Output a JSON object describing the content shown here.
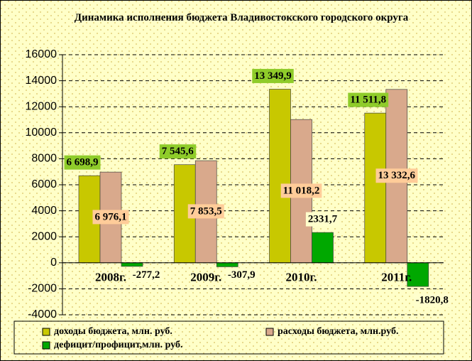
{
  "chart_data": {
    "type": "bar",
    "title": "Динамика исполнения бюджета Владивостокского городского округа",
    "categories": [
      "2008г.",
      "2009г.",
      "2010г.",
      "2011г."
    ],
    "series": [
      {
        "name": "доходы бюджета, млн. руб.",
        "color": "#c8c800",
        "values": [
          6698.9,
          7545.6,
          13349.9,
          11511.8
        ],
        "value_labels": [
          "6 698,9",
          "7 545,6",
          "13 349,9",
          "11 511,8"
        ],
        "label_bg": "#8fcc2a"
      },
      {
        "name": "расходы бюджета, млн.руб.",
        "color": "#d9a98c",
        "values": [
          6976.1,
          7853.5,
          11018.2,
          13332.6
        ],
        "value_labels": [
          "6 976,1",
          "7 853,5",
          "11 018,2",
          "13 332,6"
        ],
        "label_bg": "#ffcc99"
      },
      {
        "name": "дефицит/профицит,млн. руб.",
        "color": "#00a800",
        "values": [
          -277.2,
          -307.9,
          2331.7,
          -1820.8
        ],
        "value_labels": [
          "-277,2",
          "-307,9",
          "2331,7",
          "-1820,8"
        ],
        "label_bg": "#ffffcc"
      }
    ],
    "ylim": [
      -4000,
      16000
    ],
    "yticks": [
      -4000,
      -2000,
      0,
      2000,
      4000,
      6000,
      8000,
      10000,
      12000,
      14000,
      16000
    ],
    "grid": true,
    "legend": "bottom"
  }
}
